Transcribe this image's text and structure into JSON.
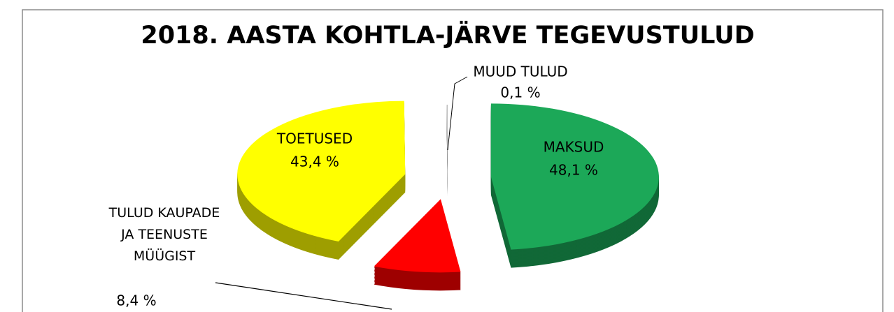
{
  "chart_data": {
    "type": "pie",
    "title": "2018. AASTA KOHTLA-JÄRVE TEGEVUSTULUD",
    "categories": [
      "MAKSUD",
      "TULUD KAUPADE JA TEENUSTE MÜÜGIST",
      "TOETUSED",
      "MUUD TULUD"
    ],
    "values": [
      48.1,
      8.4,
      43.4,
      0.1
    ],
    "value_labels": [
      "48,1 %",
      "8,4 %",
      "43,4 %",
      "0,1 %"
    ],
    "colors": [
      "#1ca858",
      "#ff0000",
      "#ffff00",
      "#bfbfbf"
    ]
  }
}
